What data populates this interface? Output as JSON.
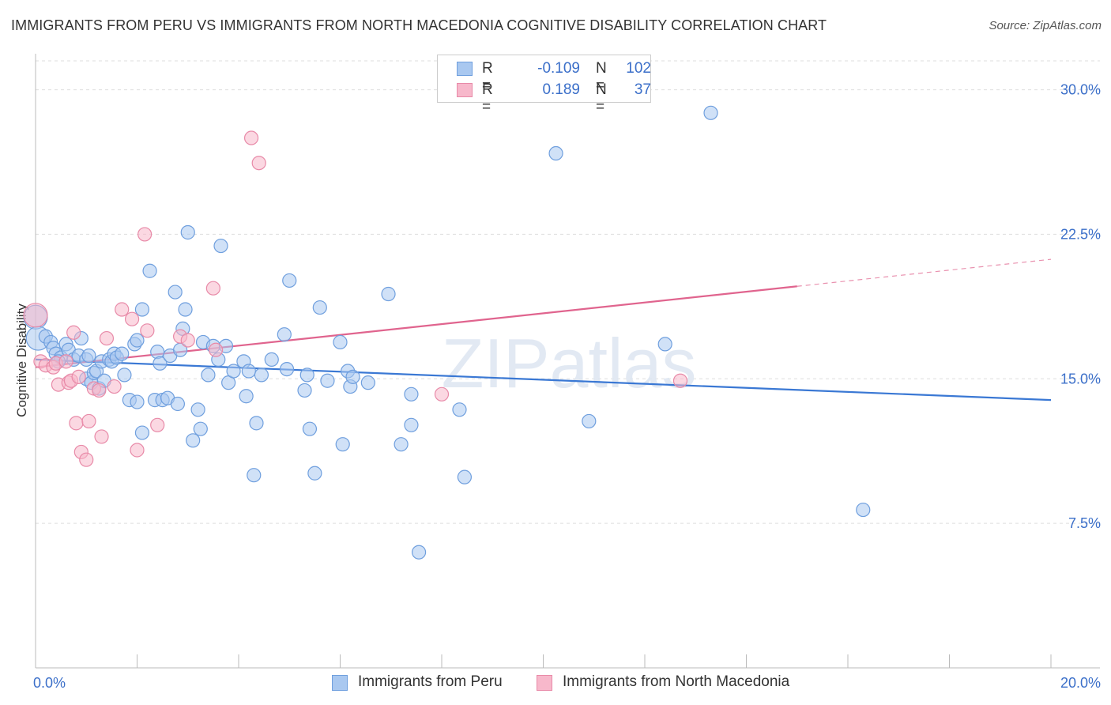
{
  "header": {
    "title": "IMMIGRANTS FROM PERU VS IMMIGRANTS FROM NORTH MACEDONIA COGNITIVE DISABILITY CORRELATION CHART",
    "source": "Source: ZipAtlas.com"
  },
  "legend": {
    "series1": {
      "r_label": "R =",
      "r_value": "-0.109",
      "n_label": "N =",
      "n_value": "102"
    },
    "series2": {
      "r_label": "R =",
      "r_value": "0.189",
      "n_label": "N =",
      "n_value": "37"
    }
  },
  "bottom_legend": {
    "series1": "Immigrants from Peru",
    "series2": "Immigrants from North Macedonia"
  },
  "colors": {
    "peru_fill": "#a9c8f0",
    "peru_stroke": "#6f9fde",
    "peru_line": "#3a78d4",
    "nmac_fill": "#f7b8cb",
    "nmac_stroke": "#e88aa8",
    "nmac_line": "#e0648e",
    "tick_text": "#3b6fc9",
    "grid": "#dddddd"
  },
  "chart_data": {
    "type": "scatter",
    "title": "IMMIGRANTS FROM PERU VS IMMIGRANTS FROM NORTH MACEDONIA COGNITIVE DISABILITY CORRELATION CHART",
    "xlabel": "",
    "ylabel": "Cognitive Disability",
    "xlim": [
      0,
      20
    ],
    "ylim": [
      0,
      31.5
    ],
    "x_tick_labels": [
      "0.0%",
      "20.0%"
    ],
    "y_ticks": [
      7.5,
      15.0,
      22.5,
      30.0
    ],
    "y_tick_labels": [
      "7.5%",
      "15.0%",
      "22.5%",
      "30.0%"
    ],
    "grid": true,
    "legend_position": "top-center",
    "watermark": "ZIPatlas",
    "series": [
      {
        "name": "Immigrants from Peru",
        "trend": {
          "x": [
            0,
            20
          ],
          "y": [
            16.0,
            13.9
          ]
        },
        "points": [
          [
            0.0,
            18.2
          ],
          [
            0.05,
            17.1
          ],
          [
            0.2,
            17.2
          ],
          [
            0.3,
            16.9
          ],
          [
            0.35,
            16.6
          ],
          [
            0.4,
            16.3
          ],
          [
            0.5,
            16.1
          ],
          [
            0.45,
            15.9
          ],
          [
            0.6,
            16.8
          ],
          [
            0.65,
            16.5
          ],
          [
            0.75,
            16.0
          ],
          [
            0.85,
            16.2
          ],
          [
            0.9,
            17.1
          ],
          [
            1.0,
            16.0
          ],
          [
            1.05,
            16.2
          ],
          [
            1.0,
            15.0
          ],
          [
            1.1,
            14.8
          ],
          [
            1.15,
            15.3
          ],
          [
            1.2,
            15.4
          ],
          [
            1.25,
            14.5
          ],
          [
            1.3,
            15.9
          ],
          [
            1.35,
            14.9
          ],
          [
            1.45,
            16.0
          ],
          [
            1.5,
            15.9
          ],
          [
            1.55,
            16.3
          ],
          [
            1.6,
            16.1
          ],
          [
            1.7,
            16.3
          ],
          [
            1.75,
            15.2
          ],
          [
            1.85,
            13.9
          ],
          [
            1.95,
            16.8
          ],
          [
            2.0,
            17.0
          ],
          [
            2.0,
            13.8
          ],
          [
            2.1,
            12.2
          ],
          [
            2.1,
            18.6
          ],
          [
            2.25,
            20.6
          ],
          [
            2.35,
            13.9
          ],
          [
            2.4,
            16.4
          ],
          [
            2.45,
            15.8
          ],
          [
            2.5,
            13.9
          ],
          [
            2.6,
            14.0
          ],
          [
            2.65,
            16.2
          ],
          [
            2.75,
            19.5
          ],
          [
            2.8,
            13.7
          ],
          [
            2.85,
            16.5
          ],
          [
            2.9,
            17.6
          ],
          [
            2.95,
            18.6
          ],
          [
            3.0,
            22.6
          ],
          [
            3.1,
            11.8
          ],
          [
            3.2,
            13.4
          ],
          [
            3.25,
            12.4
          ],
          [
            3.3,
            16.9
          ],
          [
            3.4,
            15.2
          ],
          [
            3.5,
            16.7
          ],
          [
            3.6,
            16.0
          ],
          [
            3.65,
            21.9
          ],
          [
            3.75,
            16.7
          ],
          [
            3.8,
            14.8
          ],
          [
            3.9,
            15.4
          ],
          [
            4.1,
            15.9
          ],
          [
            4.15,
            14.1
          ],
          [
            4.2,
            15.4
          ],
          [
            4.3,
            10.0
          ],
          [
            4.35,
            12.7
          ],
          [
            4.45,
            15.2
          ],
          [
            4.65,
            16.0
          ],
          [
            4.9,
            17.3
          ],
          [
            4.95,
            15.5
          ],
          [
            5.0,
            20.1
          ],
          [
            5.3,
            14.4
          ],
          [
            5.35,
            15.2
          ],
          [
            5.4,
            12.4
          ],
          [
            5.5,
            10.1
          ],
          [
            5.6,
            18.7
          ],
          [
            5.75,
            14.9
          ],
          [
            6.0,
            16.9
          ],
          [
            6.05,
            11.6
          ],
          [
            6.15,
            15.4
          ],
          [
            6.2,
            14.6
          ],
          [
            6.25,
            15.1
          ],
          [
            6.55,
            14.8
          ],
          [
            6.95,
            19.4
          ],
          [
            7.2,
            11.6
          ],
          [
            7.4,
            12.6
          ],
          [
            7.4,
            14.2
          ],
          [
            7.55,
            6.0
          ],
          [
            8.35,
            13.4
          ],
          [
            8.45,
            9.9
          ],
          [
            10.25,
            26.7
          ],
          [
            10.9,
            12.8
          ],
          [
            12.4,
            16.8
          ],
          [
            13.3,
            28.8
          ],
          [
            16.3,
            8.2
          ]
        ]
      },
      {
        "name": "Immigrants from North Macedonia",
        "trend": {
          "x": [
            0,
            15
          ],
          "y": [
            15.6,
            19.8
          ],
          "dashed_to": {
            "x": 20,
            "y": 21.2
          }
        },
        "points": [
          [
            0.0,
            18.3
          ],
          [
            0.1,
            15.9
          ],
          [
            0.2,
            15.7
          ],
          [
            0.35,
            15.6
          ],
          [
            0.4,
            15.8
          ],
          [
            0.45,
            14.7
          ],
          [
            0.6,
            15.9
          ],
          [
            0.65,
            14.8
          ],
          [
            0.7,
            14.9
          ],
          [
            0.75,
            17.4
          ],
          [
            0.8,
            12.7
          ],
          [
            0.85,
            15.1
          ],
          [
            0.9,
            11.2
          ],
          [
            1.0,
            10.8
          ],
          [
            1.05,
            12.8
          ],
          [
            1.15,
            14.5
          ],
          [
            1.25,
            14.4
          ],
          [
            1.3,
            12.0
          ],
          [
            1.4,
            17.1
          ],
          [
            1.55,
            14.6
          ],
          [
            1.7,
            18.6
          ],
          [
            1.9,
            18.1
          ],
          [
            2.0,
            11.3
          ],
          [
            2.15,
            22.5
          ],
          [
            2.2,
            17.5
          ],
          [
            2.4,
            12.6
          ],
          [
            2.85,
            17.2
          ],
          [
            3.0,
            17.0
          ],
          [
            3.5,
            19.7
          ],
          [
            3.55,
            16.5
          ],
          [
            4.25,
            27.5
          ],
          [
            4.4,
            26.2
          ],
          [
            8.0,
            14.2
          ],
          [
            12.7,
            14.9
          ]
        ]
      }
    ]
  }
}
